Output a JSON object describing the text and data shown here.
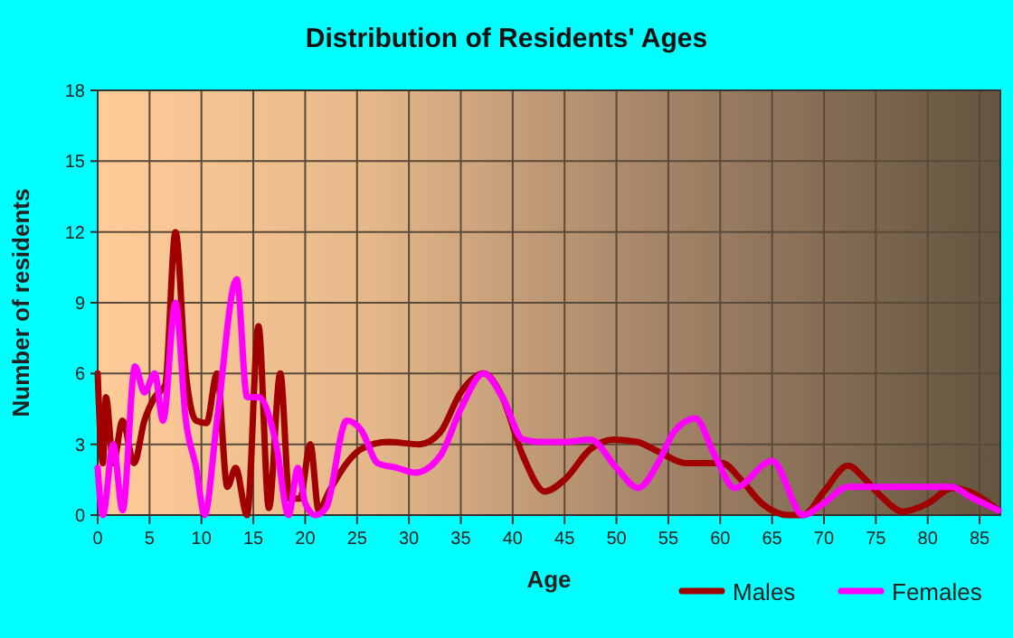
{
  "chart_data": {
    "type": "line",
    "title": "Distribution of Residents' Ages",
    "xlabel": "Age",
    "ylabel": "Number of residents",
    "xlim": [
      0,
      87
    ],
    "xticks": [
      0,
      5,
      10,
      15,
      20,
      25,
      30,
      35,
      40,
      45,
      50,
      55,
      60,
      65,
      70,
      75,
      80,
      85
    ],
    "ylim": [
      0,
      18
    ],
    "yticks": [
      0,
      3,
      6,
      9,
      12,
      15,
      18
    ],
    "grid": true,
    "legend": "bottom right",
    "marker": "none",
    "line_style": "solid",
    "series": [
      {
        "name": "Males",
        "color": "#a00000",
        "x": [
          0,
          0.5,
          0.8,
          1.5,
          2.4,
          3.5,
          4.5,
          5.5,
          6.5,
          7.5,
          8.5,
          9.5,
          10.5,
          11.5,
          12.5,
          13.3,
          14.4,
          15.5,
          16.5,
          17.6,
          18.5,
          19.5,
          20.5,
          21.3,
          22.3,
          24,
          25.4,
          28,
          31,
          33,
          35,
          37.2,
          39,
          41,
          43.1,
          45,
          47.5,
          49.7,
          52,
          54,
          56.7,
          60.2,
          62,
          64,
          66.6,
          68,
          70,
          72.3,
          74,
          75.5,
          77.6,
          80,
          82.4,
          84.5,
          86.8
        ],
        "values": [
          6,
          2.2,
          5,
          2.2,
          4,
          2.2,
          4,
          5,
          5.5,
          12,
          6,
          4,
          3.9,
          6,
          1.2,
          2,
          0,
          8,
          0.3,
          6,
          0.7,
          0.7,
          3,
          0.2,
          1,
          2.2,
          2.8,
          3.1,
          3,
          3.5,
          5.2,
          6,
          5,
          2.5,
          1,
          1.5,
          2.8,
          3.2,
          3.1,
          2.7,
          2.2,
          2.2,
          1.5,
          0.5,
          0,
          0,
          1,
          2.1,
          1.5,
          0.8,
          0.15,
          0.5,
          1.15,
          0.9,
          0.2
        ]
      },
      {
        "name": "Females",
        "color": "#ff00ff",
        "x": [
          0,
          0.5,
          1.5,
          2.4,
          3.6,
          4.5,
          5.5,
          6.3,
          7.5,
          8.5,
          9.5,
          10.3,
          11.5,
          13.4,
          14.4,
          15.5,
          17.2,
          18.4,
          19.3,
          20,
          21,
          22,
          24,
          25.4,
          27,
          28.9,
          30.6,
          33,
          35,
          37.2,
          39,
          41,
          42.8,
          45,
          47.5,
          50,
          52.1,
          54,
          55.5,
          57.6,
          59.5,
          61.4,
          65,
          68,
          70,
          72.3,
          77,
          82.3,
          84,
          86.8
        ],
        "values": [
          2,
          0,
          3,
          0.2,
          6.3,
          5.2,
          6,
          4,
          9,
          4,
          2,
          0,
          4,
          10,
          5,
          5,
          3,
          0,
          2,
          0.5,
          0,
          0.3,
          4,
          3.6,
          2.2,
          2,
          1.8,
          2.5,
          4.5,
          6,
          5,
          3.2,
          3.1,
          3.1,
          3.2,
          2,
          1.15,
          2.2,
          3.5,
          4.1,
          2.5,
          1.15,
          2.3,
          0,
          0.5,
          1.2,
          1.2,
          1.2,
          0.8,
          0.2
        ]
      }
    ]
  }
}
